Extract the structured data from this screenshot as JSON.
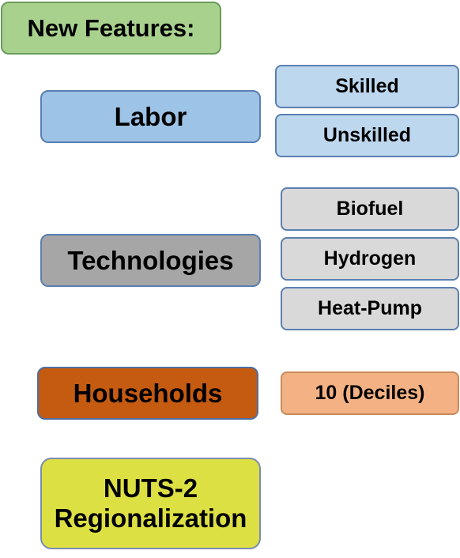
{
  "title": "New Features:",
  "categories": {
    "labor": {
      "label": "Labor",
      "items": [
        "Skilled",
        "Unskilled"
      ]
    },
    "technologies": {
      "label": "Technologies",
      "items": [
        "Biofuel",
        "Hydrogen",
        "Heat-Pump"
      ]
    },
    "households": {
      "label": "Households",
      "items": [
        "10 (Deciles)"
      ]
    },
    "regionalization": {
      "label": "NUTS-2 Regionalization"
    }
  },
  "colors": {
    "title": "#a9d18e",
    "labor": "#9dc3e6",
    "labor_items": "#bdd7ee",
    "technologies": "#a6a6a6",
    "technologies_items": "#d9d9d9",
    "households": "#c55a11",
    "households_items": "#f4b183",
    "regionalization": "#dde043"
  }
}
